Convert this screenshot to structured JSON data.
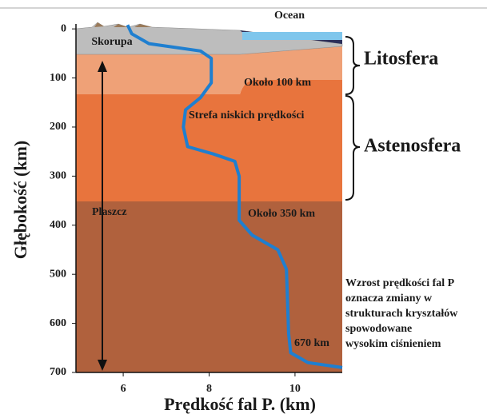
{
  "chart_data": {
    "type": "line",
    "x_label": "Prędkość fal P. (km)",
    "y_label": "Głębokość (km)",
    "x": [
      6.1,
      6.2,
      6.6,
      7.8,
      8.05,
      8.05,
      7.8,
      7.45,
      7.4,
      7.5,
      8.1,
      8.6,
      8.7,
      8.7,
      9.0,
      9.6,
      9.8,
      9.85,
      9.9,
      10.3,
      11.1
    ],
    "series": [
      {
        "color": "#1f7fd0",
        "values": [
          -8,
          10,
          30,
          45,
          60,
          110,
          140,
          165,
          200,
          240,
          255,
          270,
          300,
          390,
          420,
          450,
          490,
          620,
          660,
          680,
          690
        ]
      }
    ],
    "xlim": [
      4.9,
      11.1
    ],
    "ylim": [
      -10,
      700
    ],
    "y_inverted": true,
    "xticks": [
      6,
      8,
      10
    ],
    "yticks": [
      0,
      100,
      200,
      300,
      400,
      500,
      600,
      700
    ],
    "annotations": [
      "Ocean",
      "Skorupa",
      "Litosfera",
      "Około 100 km",
      "Strefa niskich prędkości",
      "Astenosfera",
      "Plaszcz",
      "Około 350 km",
      "670 km"
    ],
    "note_lines": [
      "Wzrost prędkości fal P",
      "oznacza zmiany w",
      "strukturach kryształów",
      "spowodowane",
      "wysokim ciśnieniem"
    ]
  }
}
